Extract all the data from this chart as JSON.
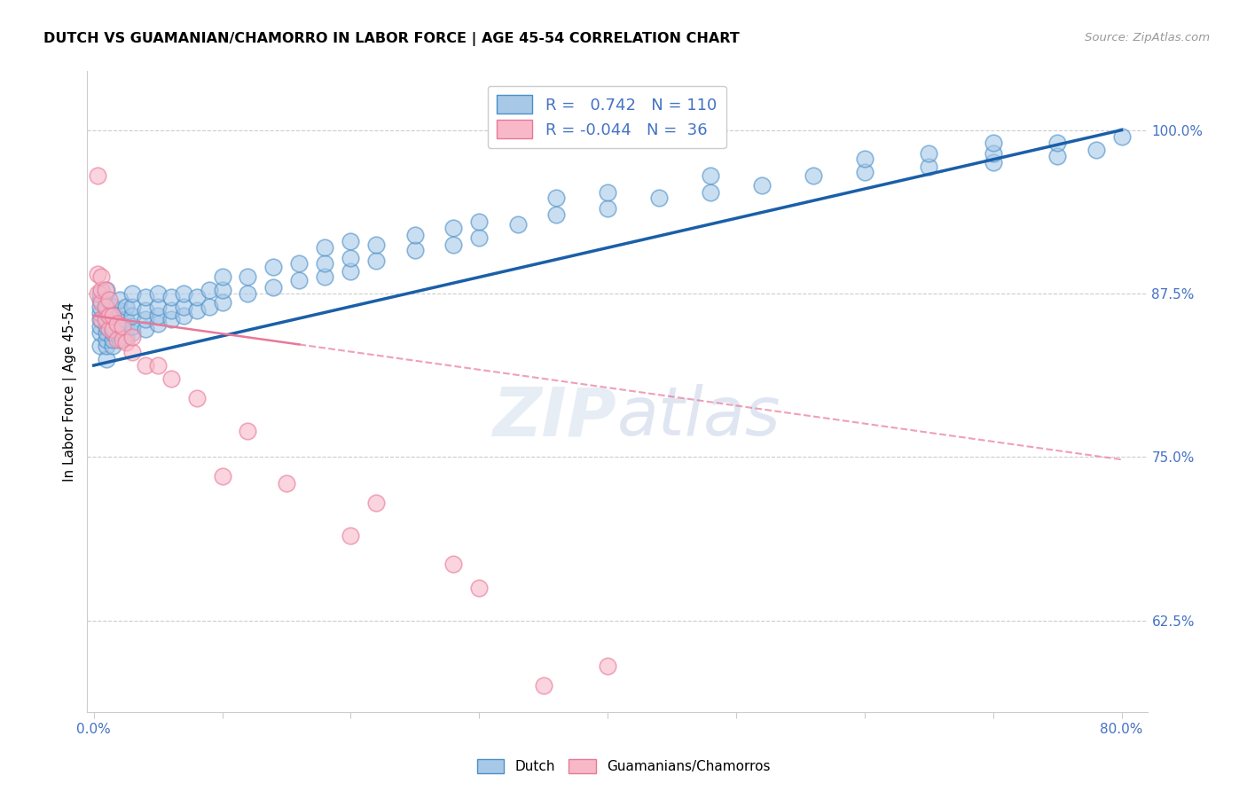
{
  "title": "DUTCH VS GUAMANIAN/CHAMORRO IN LABOR FORCE | AGE 45-54 CORRELATION CHART",
  "source": "Source: ZipAtlas.com",
  "ylabel": "In Labor Force | Age 45-54",
  "xlim": [
    -0.005,
    0.82
  ],
  "ylim": [
    0.555,
    1.045
  ],
  "xticks": [
    0.0,
    0.1,
    0.2,
    0.3,
    0.4,
    0.5,
    0.6,
    0.7,
    0.8
  ],
  "xticklabels": [
    "0.0%",
    "",
    "",
    "",
    "",
    "",
    "",
    "",
    "80.0%"
  ],
  "yticks": [
    0.625,
    0.75,
    0.875,
    1.0
  ],
  "yticklabels": [
    "62.5%",
    "75.0%",
    "87.5%",
    "100.0%"
  ],
  "blue_R": 0.742,
  "blue_N": 110,
  "pink_R": -0.044,
  "pink_N": 36,
  "blue_color": "#a8c8e8",
  "blue_edge_color": "#4a90c8",
  "pink_color": "#f8b8c8",
  "pink_edge_color": "#e87898",
  "blue_line_color": "#1a5fa8",
  "pink_line_color": "#e87898",
  "blue_scatter_x": [
    0.005,
    0.005,
    0.005,
    0.005,
    0.005,
    0.005,
    0.005,
    0.005,
    0.01,
    0.01,
    0.01,
    0.01,
    0.01,
    0.01,
    0.01,
    0.01,
    0.01,
    0.01,
    0.015,
    0.015,
    0.015,
    0.015,
    0.015,
    0.015,
    0.02,
    0.02,
    0.02,
    0.02,
    0.02,
    0.02,
    0.025,
    0.025,
    0.025,
    0.025,
    0.03,
    0.03,
    0.03,
    0.03,
    0.03,
    0.04,
    0.04,
    0.04,
    0.04,
    0.05,
    0.05,
    0.05,
    0.05,
    0.06,
    0.06,
    0.06,
    0.07,
    0.07,
    0.07,
    0.08,
    0.08,
    0.09,
    0.09,
    0.1,
    0.1,
    0.1,
    0.12,
    0.12,
    0.14,
    0.14,
    0.16,
    0.16,
    0.18,
    0.18,
    0.18,
    0.2,
    0.2,
    0.2,
    0.22,
    0.22,
    0.25,
    0.25,
    0.28,
    0.28,
    0.3,
    0.3,
    0.33,
    0.36,
    0.36,
    0.4,
    0.4,
    0.44,
    0.48,
    0.48,
    0.52,
    0.56,
    0.6,
    0.6,
    0.65,
    0.65,
    0.7,
    0.7,
    0.7,
    0.75,
    0.75,
    0.78,
    0.8
  ],
  "blue_scatter_y": [
    0.835,
    0.845,
    0.85,
    0.855,
    0.86,
    0.865,
    0.87,
    0.875,
    0.825,
    0.835,
    0.84,
    0.845,
    0.85,
    0.855,
    0.86,
    0.865,
    0.87,
    0.878,
    0.835,
    0.84,
    0.845,
    0.85,
    0.858,
    0.865,
    0.84,
    0.845,
    0.85,
    0.855,
    0.862,
    0.87,
    0.842,
    0.848,
    0.855,
    0.865,
    0.845,
    0.85,
    0.858,
    0.865,
    0.875,
    0.848,
    0.855,
    0.862,
    0.872,
    0.852,
    0.858,
    0.865,
    0.875,
    0.855,
    0.862,
    0.872,
    0.858,
    0.865,
    0.875,
    0.862,
    0.872,
    0.865,
    0.878,
    0.868,
    0.878,
    0.888,
    0.875,
    0.888,
    0.88,
    0.895,
    0.885,
    0.898,
    0.888,
    0.898,
    0.91,
    0.892,
    0.902,
    0.915,
    0.9,
    0.912,
    0.908,
    0.92,
    0.912,
    0.925,
    0.918,
    0.93,
    0.928,
    0.935,
    0.948,
    0.94,
    0.952,
    0.948,
    0.952,
    0.965,
    0.958,
    0.965,
    0.968,
    0.978,
    0.972,
    0.982,
    0.975,
    0.982,
    0.99,
    0.98,
    0.99,
    0.985,
    0.995
  ],
  "pink_scatter_x": [
    0.003,
    0.003,
    0.003,
    0.006,
    0.006,
    0.006,
    0.006,
    0.009,
    0.009,
    0.009,
    0.012,
    0.012,
    0.012,
    0.015,
    0.015,
    0.018,
    0.018,
    0.022,
    0.022,
    0.025,
    0.03,
    0.03,
    0.04,
    0.05,
    0.06,
    0.08,
    0.1,
    0.12,
    0.15,
    0.2,
    0.22,
    0.28,
    0.3,
    0.35,
    0.4
  ],
  "pink_scatter_y": [
    0.875,
    0.89,
    0.965,
    0.855,
    0.868,
    0.878,
    0.888,
    0.855,
    0.865,
    0.878,
    0.848,
    0.858,
    0.87,
    0.848,
    0.858,
    0.84,
    0.852,
    0.84,
    0.85,
    0.838,
    0.83,
    0.842,
    0.82,
    0.82,
    0.81,
    0.795,
    0.735,
    0.77,
    0.73,
    0.69,
    0.715,
    0.668,
    0.65,
    0.575,
    0.59
  ],
  "blue_line_x": [
    0.0,
    0.8
  ],
  "blue_line_y": [
    0.82,
    1.0
  ],
  "pink_line_x": [
    0.0,
    0.8
  ],
  "pink_line_y": [
    0.858,
    0.748
  ],
  "watermark_zip": "ZIP",
  "watermark_atlas": "atlas",
  "background_color": "#ffffff",
  "grid_color": "#cccccc",
  "spine_color": "#cccccc"
}
